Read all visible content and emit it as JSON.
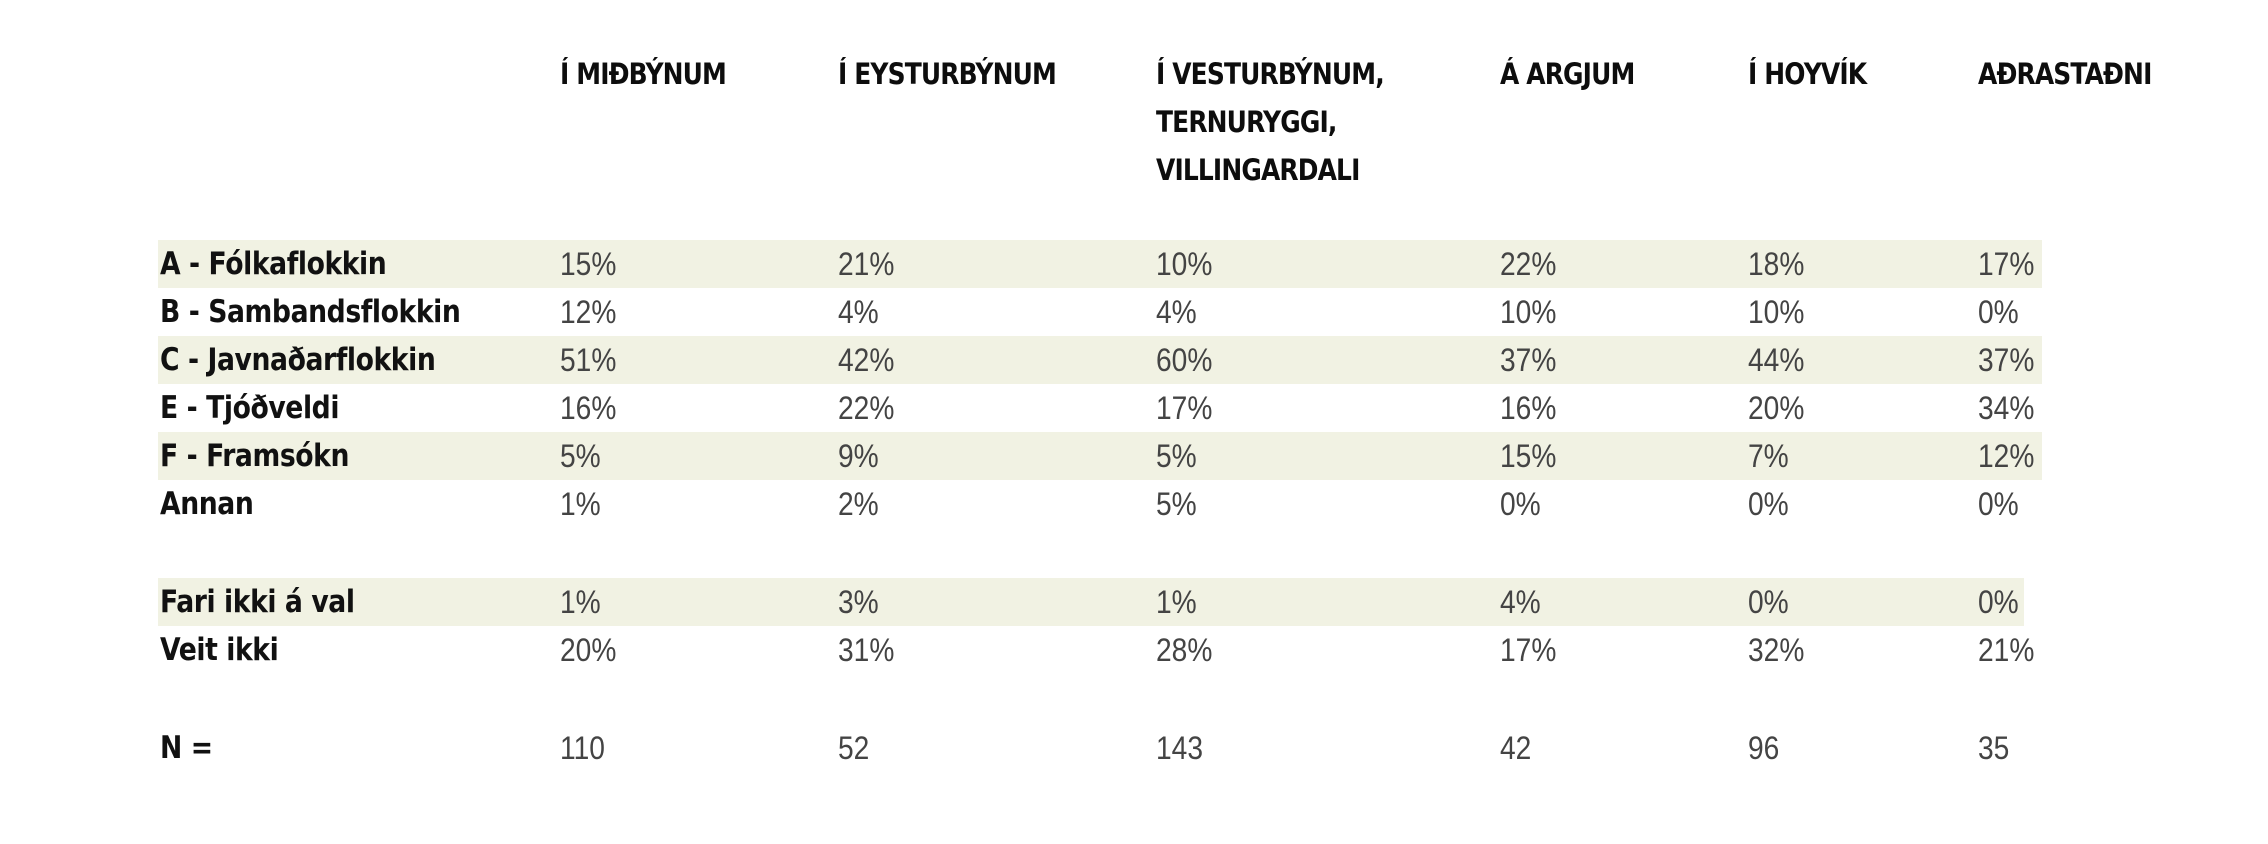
{
  "chart_data": {
    "type": "table",
    "columns": [
      "Í MIÐBÝNUM",
      "Í EYSTURBÝNUM",
      "Í VESTURBÝNUM,\nTERNURYGGI,\nVILLINGARDALI",
      "Á ARGJUM",
      "Í HOYVÍK",
      "AÐRASTAÐNI"
    ],
    "rows": [
      {
        "label": "A - Fólkaflokkin",
        "shaded": true,
        "values": [
          "15%",
          "21%",
          "10%",
          "22%",
          "18%",
          "17%"
        ]
      },
      {
        "label": "B - Sambandsflokkin",
        "shaded": false,
        "values": [
          "12%",
          "4%",
          "4%",
          "10%",
          "10%",
          "0%"
        ]
      },
      {
        "label": "C - Javnaðarflokkin",
        "shaded": true,
        "values": [
          "51%",
          "42%",
          "60%",
          "37%",
          "44%",
          "37%"
        ]
      },
      {
        "label": "E - Tjóðveldi",
        "shaded": false,
        "values": [
          "16%",
          "22%",
          "17%",
          "16%",
          "20%",
          "34%"
        ]
      },
      {
        "label": "F - Framsókn",
        "shaded": true,
        "values": [
          "5%",
          "9%",
          "5%",
          "15%",
          "7%",
          "12%"
        ]
      },
      {
        "label": "Annan",
        "shaded": false,
        "values": [
          "1%",
          "2%",
          "5%",
          "0%",
          "0%",
          "0%"
        ]
      },
      {
        "label": "Fari ikki á val",
        "shaded": true,
        "values": [
          "1%",
          "3%",
          "1%",
          "4%",
          "0%",
          "0%"
        ]
      },
      {
        "label": "Veit ikki",
        "shaded": false,
        "values": [
          "20%",
          "31%",
          "28%",
          "17%",
          "32%",
          "21%"
        ]
      },
      {
        "label": "N =",
        "shaded": false,
        "values": [
          "110",
          "52",
          "143",
          "42",
          "96",
          "35"
        ]
      }
    ],
    "colors": {
      "band": "#f1f2e3",
      "label_text": "#111111",
      "value_text": "#444444"
    }
  }
}
